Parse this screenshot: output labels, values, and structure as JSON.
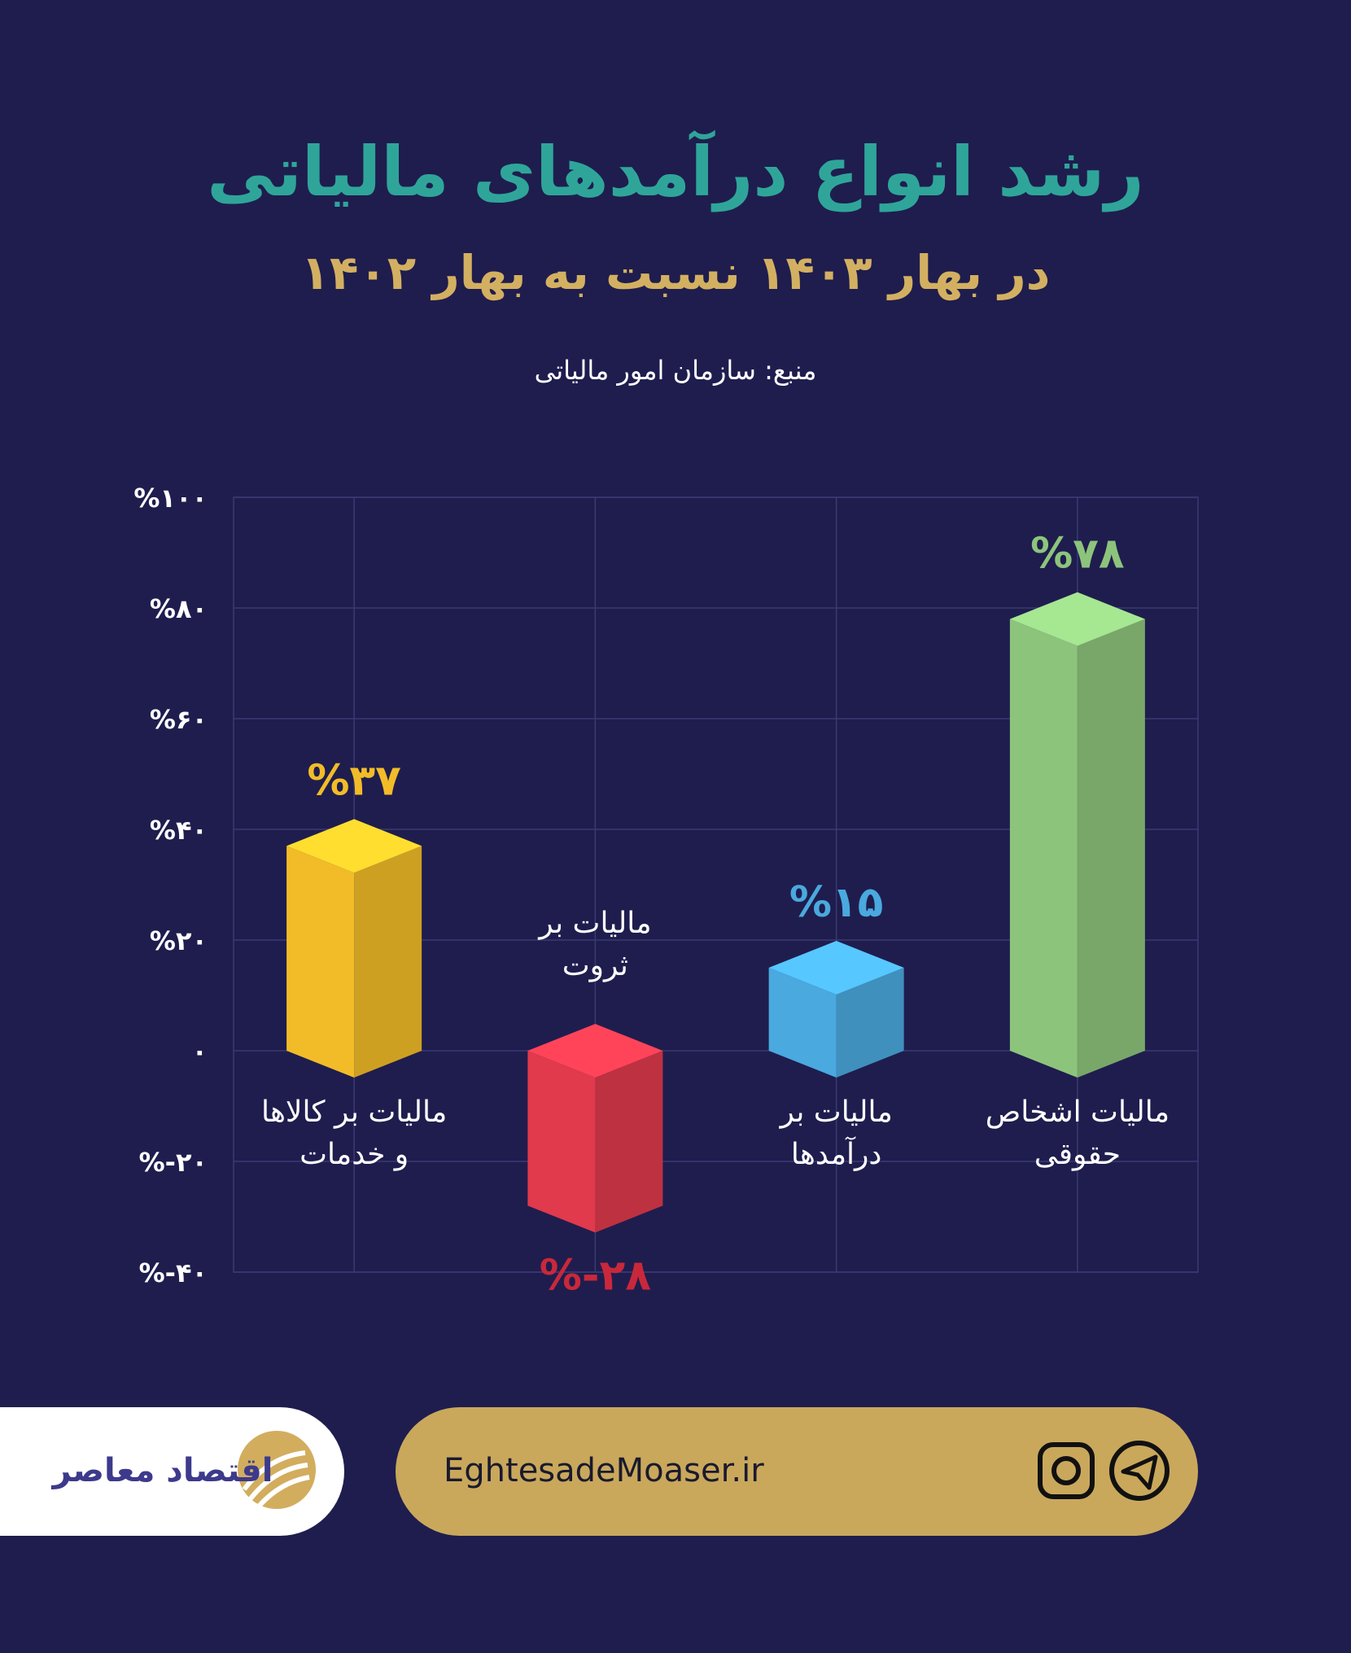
{
  "chart_data": {
    "type": "bar3d",
    "title": "رشد انواع درآمدهای مالیاتی",
    "subtitle": "در بهار ۱۴۰۳ نسبت به بهار ۱۴۰۲",
    "source": "منبع: سازمان امور مالیاتی",
    "categories": [
      "مالیات بر کالاها و خدمات",
      "مالیات بر ثروت",
      "مالیات بر درآمدها",
      "مالیات اشخاص حقوقی"
    ],
    "values": [
      37,
      -28,
      15,
      78
    ],
    "value_labels": [
      "%۳۷",
      "%-۲۸",
      "%۱۵",
      "%۷۸"
    ],
    "colors": [
      "#f2bc28",
      "#e03a4c",
      "#4aa9de",
      "#8dc47c"
    ],
    "label_colors": [
      "#f2bc28",
      "#c9283b",
      "#4aa9de",
      "#8dc47c"
    ],
    "ylim": [
      -40,
      100
    ],
    "yticks": [
      {
        "value": -40,
        "label": "%-۴۰"
      },
      {
        "value": -20,
        "label": "%-۲۰"
      },
      {
        "value": 0,
        "label": "۰"
      },
      {
        "value": 20,
        "label": "%۲۰"
      },
      {
        "value": 40,
        "label": "%۴۰"
      },
      {
        "value": 60,
        "label": "%۶۰"
      },
      {
        "value": 80,
        "label": "%۸۰"
      },
      {
        "value": 100,
        "label": "%۱۰۰"
      }
    ],
    "grid": true
  },
  "footer": {
    "website": "EghtesadeMoaser.ir",
    "logo": "اقتصاد معاصر"
  }
}
